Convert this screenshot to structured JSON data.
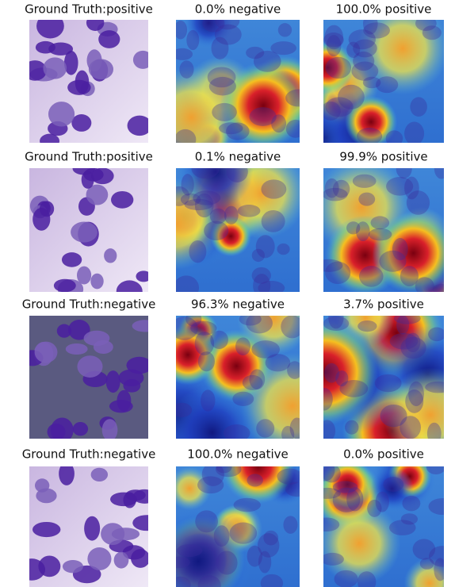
{
  "rows": [
    {
      "captions": [
        "Ground Truth:positive",
        "0.0% negative",
        "100.0% positive"
      ]
    },
    {
      "captions": [
        "Ground Truth:positive",
        "0.1% negative",
        "99.9% positive"
      ]
    },
    {
      "captions": [
        "Ground Truth:negative",
        "96.3% negative",
        "3.7% positive"
      ]
    },
    {
      "captions": [
        "Ground Truth:negative",
        "100.0% negative",
        "0.0% positive"
      ]
    }
  ]
}
